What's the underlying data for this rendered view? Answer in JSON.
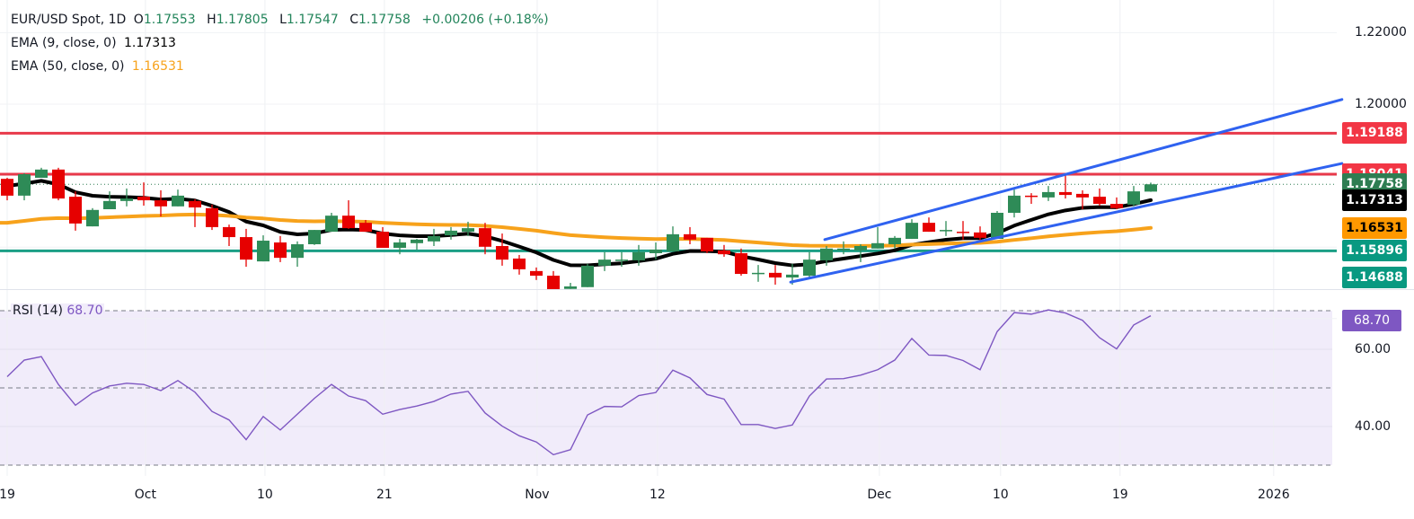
{
  "header": {
    "symbol": "EUR/USD Spot, 1D",
    "o_label": "O",
    "o": "1.17553",
    "h_label": "H",
    "h": "1.17805",
    "l_label": "L",
    "l": "1.17547",
    "c_label": "C",
    "c": "1.17758",
    "change": "+0.00206 (+0.18%)"
  },
  "indicators": [
    {
      "label": "EMA (9, close, 0)",
      "value": "1.17313",
      "color": "#000000"
    },
    {
      "label": "EMA (50, close, 0)",
      "value": "1.16531",
      "color": "#f7a21b"
    }
  ],
  "rsi_legend": {
    "label": "RSI (14)",
    "value": "68.70",
    "color": "#7e57c2"
  },
  "price_axis": {
    "labels": [
      {
        "text": "1.22000",
        "price": 1.22
      },
      {
        "text": "1.20000",
        "price": 1.2
      }
    ],
    "tags": [
      {
        "text": "1.19188",
        "price": 1.19188,
        "color": "#f23645"
      },
      {
        "text": "1.18041",
        "price": 1.18041,
        "color": "#f23645"
      },
      {
        "text": "1.17758",
        "price": 1.17758,
        "color": "#2e7d52"
      },
      {
        "text": "1.17313",
        "price": 1.17313,
        "color": "#000000"
      },
      {
        "text": "1.16531",
        "price": 1.16531,
        "color": "#ff9800"
      },
      {
        "text": "1.15896",
        "price": 1.15896,
        "color": "#089981"
      },
      {
        "text": "1.14688",
        "price": 1.14688,
        "color": "#089981"
      }
    ]
  },
  "rsi_axis": {
    "labels": [
      {
        "text": "60.00",
        "value": 60
      },
      {
        "text": "40.00",
        "value": 40
      }
    ],
    "tag": {
      "text": "68.70",
      "value": 68.7,
      "color": "#7e57c2"
    }
  },
  "chart_data": [
    {
      "type": "candlestick",
      "title": "EUR/USD Spot, 1D",
      "ohlc_order": [
        "open",
        "high",
        "low",
        "close"
      ],
      "colors": {
        "up": "#2e8b57",
        "down": "#e60000"
      },
      "ylim": [
        1.1469,
        1.229
      ],
      "xticks": [
        {
          "label": "19",
          "bar": 1
        },
        {
          "label": "Oct",
          "bar": 9.1
        },
        {
          "label": "10",
          "bar": 16.1
        },
        {
          "label": "21",
          "bar": 23.1
        },
        {
          "label": "Nov",
          "bar": 32.05
        },
        {
          "label": "12",
          "bar": 39.1
        },
        {
          "label": "Dec",
          "bar": 52.1
        },
        {
          "label": "10",
          "bar": 59.2
        },
        {
          "label": "19",
          "bar": 66.2
        },
        {
          "label": "2026",
          "bar": 75.2
        }
      ],
      "candles": [
        [
          1.1791,
          1.1794,
          1.1731,
          1.1744
        ],
        [
          1.1744,
          1.1807,
          1.1731,
          1.1804
        ],
        [
          1.1794,
          1.1822,
          1.1794,
          1.1817
        ],
        [
          1.1817,
          1.1822,
          1.1731,
          1.1736
        ],
        [
          1.1741,
          1.1756,
          1.1646,
          1.1666
        ],
        [
          1.1658,
          1.1709,
          1.1658,
          1.1704
        ],
        [
          1.1706,
          1.1756,
          1.1706,
          1.1729
        ],
        [
          1.1729,
          1.1764,
          1.1714,
          1.1736
        ],
        [
          1.1741,
          1.1781,
          1.1716,
          1.1731
        ],
        [
          1.1731,
          1.1759,
          1.1686,
          1.1714
        ],
        [
          1.1714,
          1.1761,
          1.1714,
          1.1744
        ],
        [
          1.1729,
          1.1734,
          1.1656,
          1.1711
        ],
        [
          1.1709,
          1.1719,
          1.1648,
          1.1656
        ],
        [
          1.1656,
          1.1663,
          1.1603,
          1.1628
        ],
        [
          1.1628,
          1.1651,
          1.1545,
          1.1565
        ],
        [
          1.156,
          1.1633,
          1.156,
          1.1618
        ],
        [
          1.1613,
          1.1631,
          1.1558,
          1.157
        ],
        [
          1.157,
          1.1616,
          1.1545,
          1.1608
        ],
        [
          1.1608,
          1.1648,
          1.1606,
          1.1648
        ],
        [
          1.1643,
          1.1696,
          1.1643,
          1.1688
        ],
        [
          1.1688,
          1.1731,
          1.1651,
          1.1653
        ],
        [
          1.1668,
          1.1676,
          1.1643,
          1.1643
        ],
        [
          1.1643,
          1.1656,
          1.1598,
          1.1598
        ],
        [
          1.1598,
          1.1623,
          1.158,
          1.1613
        ],
        [
          1.1611,
          1.1623,
          1.1593,
          1.1621
        ],
        [
          1.1616,
          1.1651,
          1.1603,
          1.1631
        ],
        [
          1.1633,
          1.1656,
          1.1621,
          1.1646
        ],
        [
          1.1643,
          1.1671,
          1.1631,
          1.1653
        ],
        [
          1.1653,
          1.1668,
          1.158,
          1.1601
        ],
        [
          1.1603,
          1.1638,
          1.1548,
          1.1565
        ],
        [
          1.1568,
          1.1578,
          1.1523,
          1.1538
        ],
        [
          1.1533,
          1.1543,
          1.1508,
          1.152
        ],
        [
          1.152,
          1.1533,
          1.1469,
          1.148
        ],
        [
          1.1483,
          1.15,
          1.1483,
          1.149
        ],
        [
          1.1488,
          1.1553,
          1.1488,
          1.1548
        ],
        [
          1.1548,
          1.1586,
          1.1533,
          1.1565
        ],
        [
          1.1563,
          1.1586,
          1.1545,
          1.1565
        ],
        [
          1.1563,
          1.1606,
          1.1548,
          1.1586
        ],
        [
          1.1583,
          1.1613,
          1.1565,
          1.1593
        ],
        [
          1.1588,
          1.1658,
          1.1588,
          1.1636
        ],
        [
          1.1636,
          1.1656,
          1.1608,
          1.1621
        ],
        [
          1.1626,
          1.1626,
          1.1583,
          1.1588
        ],
        [
          1.1591,
          1.1606,
          1.1573,
          1.158
        ],
        [
          1.1583,
          1.1596,
          1.152,
          1.1525
        ],
        [
          1.1525,
          1.155,
          1.1503,
          1.1528
        ],
        [
          1.1528,
          1.155,
          1.1495,
          1.1515
        ],
        [
          1.1515,
          1.1553,
          1.1495,
          1.1523
        ],
        [
          1.152,
          1.1586,
          1.1515,
          1.1565
        ],
        [
          1.1563,
          1.1603,
          1.1548,
          1.1596
        ],
        [
          1.1591,
          1.1616,
          1.158,
          1.1596
        ],
        [
          1.1591,
          1.1608,
          1.1558,
          1.1603
        ],
        [
          1.1596,
          1.1656,
          1.1596,
          1.1611
        ],
        [
          1.1608,
          1.1631,
          1.1596,
          1.1626
        ],
        [
          1.1623,
          1.1678,
          1.1623,
          1.1668
        ],
        [
          1.1668,
          1.1683,
          1.1643,
          1.1643
        ],
        [
          1.1646,
          1.1673,
          1.1631,
          1.1648
        ],
        [
          1.1643,
          1.1673,
          1.1621,
          1.1641
        ],
        [
          1.1641,
          1.1658,
          1.1616,
          1.1626
        ],
        [
          1.1623,
          1.1701,
          1.1623,
          1.1696
        ],
        [
          1.1696,
          1.1761,
          1.1683,
          1.1744
        ],
        [
          1.1744,
          1.1751,
          1.1721,
          1.1741
        ],
        [
          1.1739,
          1.1771,
          1.1729,
          1.1754
        ],
        [
          1.1754,
          1.1804,
          1.1736,
          1.1746
        ],
        [
          1.1749,
          1.1759,
          1.1706,
          1.1739
        ],
        [
          1.1741,
          1.1764,
          1.1716,
          1.1721
        ],
        [
          1.1721,
          1.1739,
          1.1706,
          1.1709
        ],
        [
          1.1719,
          1.1771,
          1.1714,
          1.1756
        ],
        [
          1.17553,
          1.17805,
          1.17547,
          1.17758
        ]
      ],
      "ema": [
        {
          "name": "EMA (9, close, 0)",
          "period": 9,
          "color": "#000000"
        },
        {
          "name": "EMA (50, close, 0)",
          "period": 50,
          "color": "#f7a21b"
        }
      ],
      "horizontal_levels": [
        {
          "price": 1.19188,
          "color": "#e8394a"
        },
        {
          "price": 1.18041,
          "color": "#e8394a"
        },
        {
          "price": 1.15896,
          "color": "#1a9e85"
        }
      ],
      "last_price_line": {
        "price": 1.17758,
        "color": "#2e7d52",
        "style": "dotted"
      },
      "trendlines": [
        {
          "from": [
            48.9,
            1.1621
          ],
          "to": [
            79.2,
            1.2013
          ],
          "color": "#2f62f0"
        },
        {
          "from": [
            46.9,
            1.1502
          ],
          "to": [
            79.2,
            1.1834
          ],
          "color": "#2f62f0"
        }
      ],
      "grid": true
    },
    {
      "type": "line",
      "title": "RSI (14)",
      "color": "#7e57c2",
      "ylim": [
        27,
        73
      ],
      "bands": {
        "upper": 70,
        "middle": 50,
        "lower": 30,
        "fill": "#f1ecfa"
      },
      "values": [
        52.9,
        57.2,
        58.1,
        50.9,
        45.5,
        48.7,
        50.5,
        51.2,
        50.9,
        49.3,
        51.9,
        48.9,
        43.9,
        41.7,
        36.6,
        42.6,
        39.1,
        43.2,
        47.3,
        50.9,
        47.9,
        46.7,
        43.2,
        44.4,
        45.3,
        46.5,
        48.4,
        49.1,
        43.5,
        40.1,
        37.6,
        36.0,
        32.7,
        34.0,
        43.0,
        45.2,
        45.1,
        48.0,
        48.8,
        54.6,
        52.6,
        48.3,
        47.1,
        40.5,
        40.5,
        39.5,
        40.4,
        47.9,
        52.3,
        52.4,
        53.3,
        54.7,
        57.2,
        62.8,
        58.5,
        58.4,
        57.1,
        54.7,
        64.6,
        69.5,
        69.1,
        70.2,
        69.4,
        67.5,
        63.0,
        60.1,
        66.3,
        68.7
      ]
    }
  ]
}
